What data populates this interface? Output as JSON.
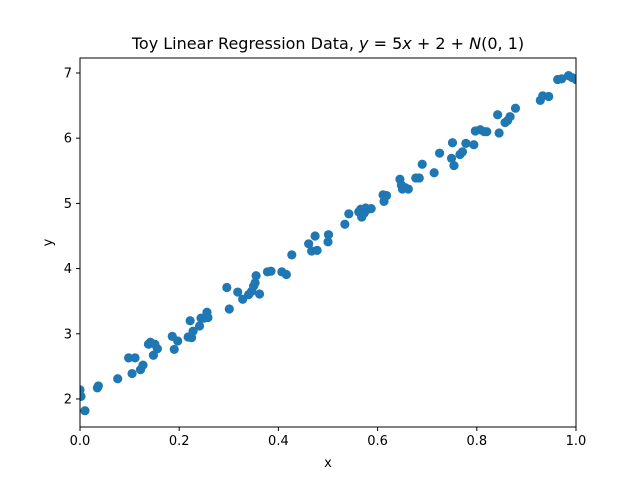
{
  "chart_data": {
    "type": "scatter",
    "title": "Toy Linear Regression Data, y = 5x + 2 + N(0, 1)",
    "xlabel": "x",
    "ylabel": "y",
    "xlim": [
      0.0,
      1.0
    ],
    "ylim": [
      1.57,
      7.23
    ],
    "xticks": [
      0.0,
      0.2,
      0.4,
      0.6,
      0.8,
      1.0
    ],
    "xtick_labels": [
      "0.0",
      "0.2",
      "0.4",
      "0.6",
      "0.8",
      "1.0"
    ],
    "yticks": [
      2,
      3,
      4,
      5,
      6,
      7
    ],
    "ytick_labels": [
      "2",
      "3",
      "4",
      "5",
      "6",
      "7"
    ],
    "grid": false,
    "legend": false,
    "marker_color": "#1f77b4",
    "points": [
      {
        "x": 0.0,
        "y": 2.14
      },
      {
        "x": 0.002,
        "y": 2.04
      },
      {
        "x": 0.01,
        "y": 1.82
      },
      {
        "x": 0.035,
        "y": 2.17
      },
      {
        "x": 0.037,
        "y": 2.2
      },
      {
        "x": 0.076,
        "y": 2.31
      },
      {
        "x": 0.098,
        "y": 2.63
      },
      {
        "x": 0.105,
        "y": 2.39
      },
      {
        "x": 0.111,
        "y": 2.63
      },
      {
        "x": 0.122,
        "y": 2.45
      },
      {
        "x": 0.127,
        "y": 2.52
      },
      {
        "x": 0.138,
        "y": 2.84
      },
      {
        "x": 0.142,
        "y": 2.87
      },
      {
        "x": 0.148,
        "y": 2.67
      },
      {
        "x": 0.151,
        "y": 2.84
      },
      {
        "x": 0.156,
        "y": 2.77
      },
      {
        "x": 0.186,
        "y": 2.96
      },
      {
        "x": 0.19,
        "y": 2.76
      },
      {
        "x": 0.197,
        "y": 2.89
      },
      {
        "x": 0.218,
        "y": 2.95
      },
      {
        "x": 0.222,
        "y": 3.2
      },
      {
        "x": 0.225,
        "y": 2.94
      },
      {
        "x": 0.228,
        "y": 3.04
      },
      {
        "x": 0.241,
        "y": 3.12
      },
      {
        "x": 0.244,
        "y": 3.24
      },
      {
        "x": 0.25,
        "y": 3.24
      },
      {
        "x": 0.256,
        "y": 3.33
      },
      {
        "x": 0.258,
        "y": 3.25
      },
      {
        "x": 0.296,
        "y": 3.71
      },
      {
        "x": 0.301,
        "y": 3.38
      },
      {
        "x": 0.318,
        "y": 3.64
      },
      {
        "x": 0.328,
        "y": 3.53
      },
      {
        "x": 0.34,
        "y": 3.6
      },
      {
        "x": 0.346,
        "y": 3.65
      },
      {
        "x": 0.35,
        "y": 3.73
      },
      {
        "x": 0.353,
        "y": 3.78
      },
      {
        "x": 0.355,
        "y": 3.89
      },
      {
        "x": 0.362,
        "y": 3.61
      },
      {
        "x": 0.378,
        "y": 3.95
      },
      {
        "x": 0.385,
        "y": 3.96
      },
      {
        "x": 0.407,
        "y": 3.95
      },
      {
        "x": 0.416,
        "y": 3.91
      },
      {
        "x": 0.427,
        "y": 4.21
      },
      {
        "x": 0.461,
        "y": 4.38
      },
      {
        "x": 0.467,
        "y": 4.27
      },
      {
        "x": 0.474,
        "y": 4.5
      },
      {
        "x": 0.478,
        "y": 4.28
      },
      {
        "x": 0.5,
        "y": 4.41
      },
      {
        "x": 0.501,
        "y": 4.52
      },
      {
        "x": 0.534,
        "y": 4.68
      },
      {
        "x": 0.542,
        "y": 4.84
      },
      {
        "x": 0.562,
        "y": 4.87
      },
      {
        "x": 0.566,
        "y": 4.91
      },
      {
        "x": 0.568,
        "y": 4.79
      },
      {
        "x": 0.573,
        "y": 4.85
      },
      {
        "x": 0.576,
        "y": 4.93
      },
      {
        "x": 0.58,
        "y": 4.91
      },
      {
        "x": 0.587,
        "y": 4.92
      },
      {
        "x": 0.611,
        "y": 5.13
      },
      {
        "x": 0.613,
        "y": 5.03
      },
      {
        "x": 0.618,
        "y": 5.12
      },
      {
        "x": 0.645,
        "y": 5.37
      },
      {
        "x": 0.648,
        "y": 5.28
      },
      {
        "x": 0.65,
        "y": 5.22
      },
      {
        "x": 0.656,
        "y": 5.24
      },
      {
        "x": 0.662,
        "y": 5.22
      },
      {
        "x": 0.677,
        "y": 5.39
      },
      {
        "x": 0.684,
        "y": 5.39
      },
      {
        "x": 0.69,
        "y": 5.6
      },
      {
        "x": 0.714,
        "y": 5.47
      },
      {
        "x": 0.725,
        "y": 5.77
      },
      {
        "x": 0.749,
        "y": 5.69
      },
      {
        "x": 0.751,
        "y": 5.93
      },
      {
        "x": 0.754,
        "y": 5.58
      },
      {
        "x": 0.766,
        "y": 5.75
      },
      {
        "x": 0.771,
        "y": 5.79
      },
      {
        "x": 0.778,
        "y": 5.92
      },
      {
        "x": 0.794,
        "y": 5.9
      },
      {
        "x": 0.797,
        "y": 6.11
      },
      {
        "x": 0.807,
        "y": 6.13
      },
      {
        "x": 0.815,
        "y": 6.1
      },
      {
        "x": 0.82,
        "y": 6.1
      },
      {
        "x": 0.842,
        "y": 6.36
      },
      {
        "x": 0.845,
        "y": 6.08
      },
      {
        "x": 0.857,
        "y": 6.24
      },
      {
        "x": 0.862,
        "y": 6.27
      },
      {
        "x": 0.867,
        "y": 6.33
      },
      {
        "x": 0.878,
        "y": 6.46
      },
      {
        "x": 0.928,
        "y": 6.58
      },
      {
        "x": 0.933,
        "y": 6.65
      },
      {
        "x": 0.945,
        "y": 6.64
      },
      {
        "x": 0.963,
        "y": 6.9
      },
      {
        "x": 0.971,
        "y": 6.91
      },
      {
        "x": 0.985,
        "y": 6.96
      },
      {
        "x": 0.992,
        "y": 6.93
      },
      {
        "x": 1.0,
        "y": 6.9
      }
    ]
  }
}
